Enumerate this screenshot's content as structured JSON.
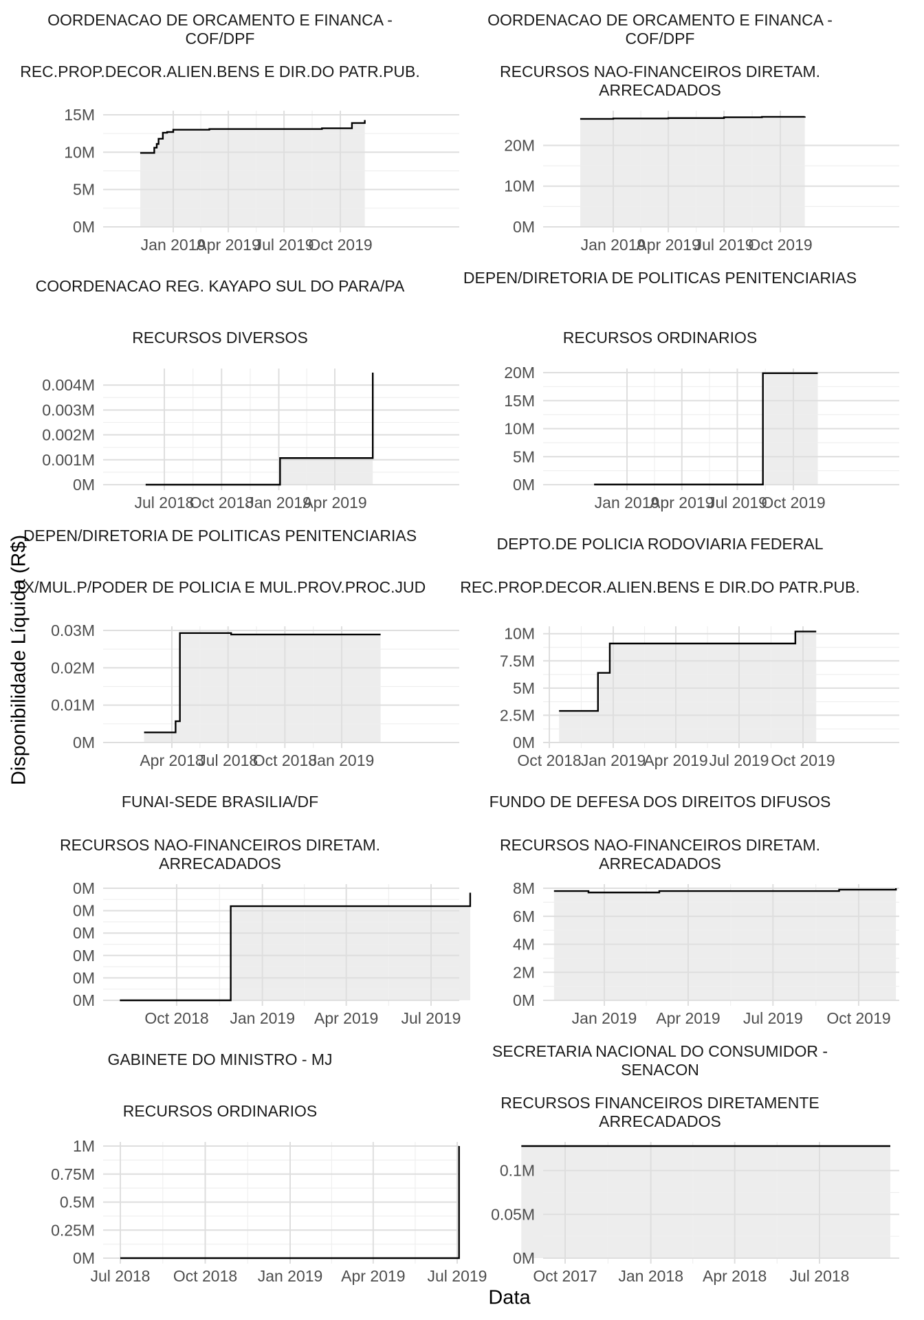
{
  "y_axis_title": "Disponibilidade Líquida (R$)",
  "x_axis_title": "Data",
  "colors": {
    "line": "#000000",
    "fill": "#ebebeb",
    "grid_major": "#dedede",
    "grid_minor": "#efefef",
    "tick_text": "#4d4d4d"
  },
  "chart_data": [
    {
      "type": "area",
      "org": "OORDENACAO DE ORCAMENTO E FINANCA - COF/DPF",
      "source": "REC.PROP.DECOR.ALIEN.BENS E DIR.DO PATR.PUB.",
      "x_ticks": [
        "Jan 2019",
        "Apr 2019",
        "Jul 2019",
        "Oct 2019"
      ],
      "y_ticks": [
        "0M",
        "5M",
        "10M",
        "15M"
      ],
      "y_tick_values": [
        0,
        5,
        10,
        15
      ],
      "ylim": [
        0,
        15
      ],
      "y_unit": "M",
      "series": [
        {
          "x": [
            "2018-11-08",
            "2018-12-01",
            "2018-12-05",
            "2018-12-08",
            "2018-12-15",
            "2018-12-22",
            "2019-01-01",
            "2019-02-01",
            "2019-03-01",
            "2019-06-01",
            "2019-09-01",
            "2019-10-20",
            "2019-11-10"
          ],
          "y": [
            9.9,
            10.6,
            11.1,
            11.8,
            12.6,
            12.7,
            13.0,
            13.0,
            13.1,
            13.1,
            13.2,
            13.9,
            14.3
          ]
        }
      ]
    },
    {
      "type": "area",
      "org": "OORDENACAO DE ORCAMENTO E FINANCA - COF/DPF",
      "source": "RECURSOS NAO-FINANCEIROS DIRETAM. ARRECADADOS",
      "x_ticks": [
        "Jan 2019",
        "Apr 2019",
        "Jul 2019",
        "Oct 2019"
      ],
      "y_ticks": [
        "0M",
        "10M",
        "20M"
      ],
      "y_tick_values": [
        0,
        10,
        20
      ],
      "ylim": [
        0,
        27.5
      ],
      "y_unit": "M",
      "series": [
        {
          "x": [
            "2018-11-08",
            "2019-01-01",
            "2019-04-01",
            "2019-07-01",
            "2019-09-01",
            "2019-11-10"
          ],
          "y": [
            26.5,
            26.6,
            26.7,
            26.9,
            27.0,
            27.1
          ]
        }
      ]
    },
    {
      "type": "area",
      "org": "COORDENACAO REG. KAYAPO SUL DO PARA/PA",
      "source": "RECURSOS DIVERSOS",
      "x_ticks": [
        "Jul 2018",
        "Oct 2018",
        "Jan 2019",
        "Apr 2019"
      ],
      "y_ticks": [
        "0M",
        "0.001M",
        "0.002M",
        "0.003M",
        "0.004M"
      ],
      "y_tick_values": [
        0,
        0.001,
        0.002,
        0.003,
        0.004
      ],
      "ylim": [
        0,
        0.0045
      ],
      "y_unit": "M",
      "series": [
        {
          "x": [
            "2018-06-01",
            "2019-01-01",
            "2019-01-03",
            "2019-05-30",
            "2019-06-01"
          ],
          "y": [
            0,
            0,
            0.00107,
            0.00107,
            0.0045
          ]
        }
      ]
    },
    {
      "type": "area",
      "org": "DEPEN/DIRETORIA DE POLITICAS PENITENCIARIAS",
      "source": "RECURSOS ORDINARIOS",
      "x_ticks": [
        "Jan 2019",
        "Apr 2019",
        "Jul 2019",
        "Oct 2019"
      ],
      "y_ticks": [
        "0M",
        "5M",
        "10M",
        "15M",
        "20M"
      ],
      "y_tick_values": [
        0,
        5,
        10,
        15,
        20
      ],
      "ylim": [
        0,
        20
      ],
      "y_unit": "M",
      "series": [
        {
          "x": [
            "2018-11-08",
            "2019-08-10",
            "2019-08-12",
            "2019-11-10"
          ],
          "y": [
            0.03,
            0.03,
            19.9,
            19.9
          ]
        }
      ]
    },
    {
      "type": "area",
      "org": "DEPEN/DIRETORIA DE POLITICAS PENITENCIARIAS",
      "source": "TX/MUL.P/PODER DE POLICIA E MUL.PROV.PROC.JUD",
      "x_ticks": [
        "Apr 2018",
        "Jul 2018",
        "Oct 2018",
        "Jan 2019"
      ],
      "y_ticks": [
        "0M",
        "0.01M",
        "0.02M",
        "0.03M"
      ],
      "y_tick_values": [
        0,
        0.01,
        0.02,
        0.03
      ],
      "ylim": [
        0,
        0.03
      ],
      "y_unit": "M",
      "series": [
        {
          "x": [
            "2018-02-15",
            "2018-04-05",
            "2018-04-07",
            "2018-04-12",
            "2018-04-14",
            "2018-07-05",
            "2018-07-06",
            "2019-03-05"
          ],
          "y": [
            0.0027,
            0.0027,
            0.0057,
            0.0057,
            0.0293,
            0.0293,
            0.0289,
            0.0289
          ]
        }
      ]
    },
    {
      "type": "area",
      "org": "DEPTO.DE POLICIA RODOVIARIA FEDERAL",
      "source": "REC.PROP.DECOR.ALIEN.BENS E DIR.DO PATR.PUB.",
      "x_ticks": [
        "Oct 2018",
        "Jan 2019",
        "Apr 2019",
        "Jul 2019",
        "Oct 2019"
      ],
      "y_ticks": [
        "0M",
        "2.5M",
        "5M",
        "7.5M",
        "10M"
      ],
      "y_tick_values": [
        0,
        2.5,
        5,
        7.5,
        10
      ],
      "ylim": [
        0,
        10.3
      ],
      "y_unit": "M",
      "series": [
        {
          "x": [
            "2018-10-15",
            "2018-12-10",
            "2018-12-27",
            "2019-09-20",
            "2019-10-20"
          ],
          "y": [
            2.9,
            6.4,
            9.1,
            10.2,
            10.2
          ]
        }
      ]
    },
    {
      "type": "area",
      "org": "FUNAI-SEDE BRASILIA/DF",
      "source": "RECURSOS NAO-FINANCEIROS DIRETAM. ARRECADADOS",
      "x_ticks": [
        "Oct 2018",
        "Jan 2019",
        "Apr 2019",
        "Jul 2019"
      ],
      "y_ticks": [
        "0M",
        "0M",
        "0M",
        "0M",
        "0M",
        "0M"
      ],
      "y_tick_values": [
        0,
        0.5,
        1,
        1.5,
        2,
        2.5
      ],
      "ylim": [
        0,
        2.5
      ],
      "y_unit": "M",
      "series": [
        {
          "x": [
            "2018-08-01",
            "2018-11-25",
            "2018-11-28",
            "2019-08-10",
            "2019-08-12"
          ],
          "y": [
            0,
            0,
            2.1,
            2.1,
            2.4
          ]
        }
      ]
    },
    {
      "type": "area",
      "org": "FUNDO DE DEFESA DOS DIREITOS DIFUSOS",
      "source": "RECURSOS NAO-FINANCEIROS DIRETAM. ARRECADADOS",
      "x_ticks": [
        "Jan 2019",
        "Apr 2019",
        "Jul 2019",
        "Oct 2019"
      ],
      "y_ticks": [
        "0M",
        "2M",
        "4M",
        "6M",
        "8M"
      ],
      "y_tick_values": [
        0,
        2,
        4,
        6,
        8
      ],
      "ylim": [
        0,
        8
      ],
      "y_unit": "M",
      "series": [
        {
          "x": [
            "2018-11-08",
            "2018-12-15",
            "2019-03-01",
            "2019-09-10",
            "2019-11-10"
          ],
          "y": [
            7.8,
            7.7,
            7.8,
            7.9,
            8.0
          ]
        }
      ]
    },
    {
      "type": "area",
      "org": "GABINETE DO MINISTRO - MJ",
      "source": "RECURSOS ORDINARIOS",
      "x_ticks": [
        "Jul 2018",
        "Oct 2018",
        "Jan 2019",
        "Apr 2019",
        "Jul 2019"
      ],
      "y_ticks": [
        "0M",
        "0.25M",
        "0.5M",
        "0.75M",
        "1M"
      ],
      "y_tick_values": [
        0,
        0.25,
        0.5,
        0.75,
        1
      ],
      "ylim": [
        0,
        1
      ],
      "y_unit": "M",
      "series": [
        {
          "x": [
            "2018-07-01",
            "2019-07-01",
            "2019-07-03"
          ],
          "y": [
            0,
            0,
            1.0
          ]
        }
      ]
    },
    {
      "type": "area",
      "org": "SECRETARIA NACIONAL DO CONSUMIDOR - SENACON",
      "source": "RECURSOS FINANCEIROS DIRETAMENTE ARRECADADOS",
      "x_ticks": [
        "Oct 2017",
        "Jan 2018",
        "Apr 2018",
        "Jul 2018"
      ],
      "y_ticks": [
        "0M",
        "0.05M",
        "0.1M"
      ],
      "y_tick_values": [
        0,
        0.05,
        0.1
      ],
      "ylim": [
        0,
        0.128
      ],
      "y_unit": "M",
      "series": [
        {
          "x": [
            "2017-08-15",
            "2018-09-15"
          ],
          "y": [
            0.128,
            0.128
          ]
        }
      ]
    }
  ]
}
